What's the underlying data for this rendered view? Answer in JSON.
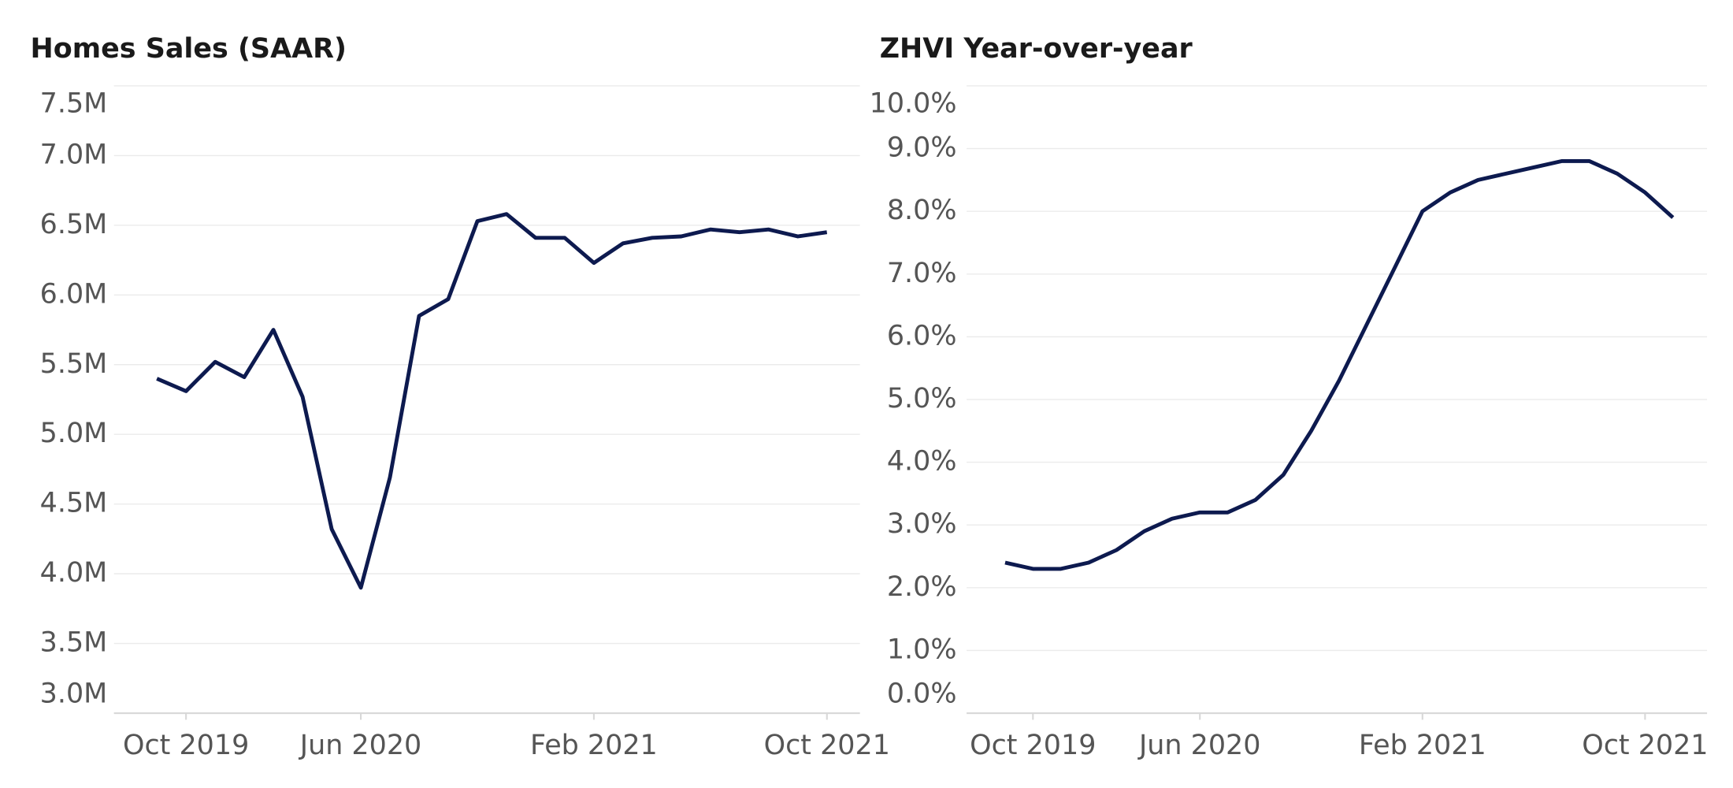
{
  "chart_data": [
    {
      "type": "line",
      "title": "Homes Sales (SAAR)",
      "categories": [
        null,
        "Oct 2019",
        null,
        null,
        null,
        null,
        null,
        "Jun 2020",
        null,
        null,
        null,
        null,
        null,
        null,
        null,
        "Feb 2021",
        null,
        null,
        null,
        null,
        null,
        null,
        null,
        "Oct 2021"
      ],
      "values": [
        5400000,
        5310000,
        5520000,
        5410000,
        5750000,
        5270000,
        4320000,
        3900000,
        4690000,
        5850000,
        5970000,
        6530000,
        6580000,
        6410000,
        6410000,
        6230000,
        6370000,
        6410000,
        6420000,
        6470000,
        6450000,
        6470000,
        6420000,
        6450000
      ],
      "color": "#0d1a4f",
      "ylim": [
        3000000,
        7500000
      ],
      "yticks": [
        {
          "value": 3000000,
          "label": "3.0M"
        },
        {
          "value": 3500000,
          "label": "3.5M"
        },
        {
          "value": 4000000,
          "label": "4.0M"
        },
        {
          "value": 4500000,
          "label": "4.5M"
        },
        {
          "value": 5000000,
          "label": "5.0M"
        },
        {
          "value": 5500000,
          "label": "5.5M"
        },
        {
          "value": 6000000,
          "label": "6.0M"
        },
        {
          "value": 6500000,
          "label": "6.5M"
        },
        {
          "value": 7000000,
          "label": "7.0M"
        },
        {
          "value": 7500000,
          "label": "7.5M"
        }
      ],
      "grid": true
    },
    {
      "type": "line",
      "title": "ZHVI Year-over-year",
      "categories": [
        null,
        "Oct 2019",
        null,
        null,
        null,
        null,
        null,
        "Jun 2020",
        null,
        null,
        null,
        null,
        null,
        null,
        null,
        "Feb 2021",
        null,
        null,
        null,
        null,
        null,
        null,
        null,
        "Oct 2021",
        null
      ],
      "values": [
        2.4,
        2.3,
        2.3,
        2.4,
        2.6,
        2.9,
        3.1,
        3.2,
        3.2,
        3.4,
        3.8,
        4.5,
        5.3,
        6.2,
        7.1,
        8.0,
        8.3,
        8.5,
        8.6,
        8.7,
        8.8,
        8.8,
        8.6,
        8.3,
        7.9
      ],
      "color": "#0d1a4f",
      "ylim": [
        0,
        10
      ],
      "yticks": [
        {
          "value": 0,
          "label": "0.0%"
        },
        {
          "value": 1,
          "label": "1.0%"
        },
        {
          "value": 2,
          "label": "2.0%"
        },
        {
          "value": 3,
          "label": "3.0%"
        },
        {
          "value": 4,
          "label": "4.0%"
        },
        {
          "value": 5,
          "label": "5.0%"
        },
        {
          "value": 6,
          "label": "6.0%"
        },
        {
          "value": 7,
          "label": "7.0%"
        },
        {
          "value": 8,
          "label": "8.0%"
        },
        {
          "value": 9,
          "label": "9.0%"
        },
        {
          "value": 10,
          "label": "10.0%"
        }
      ],
      "grid": true
    }
  ]
}
